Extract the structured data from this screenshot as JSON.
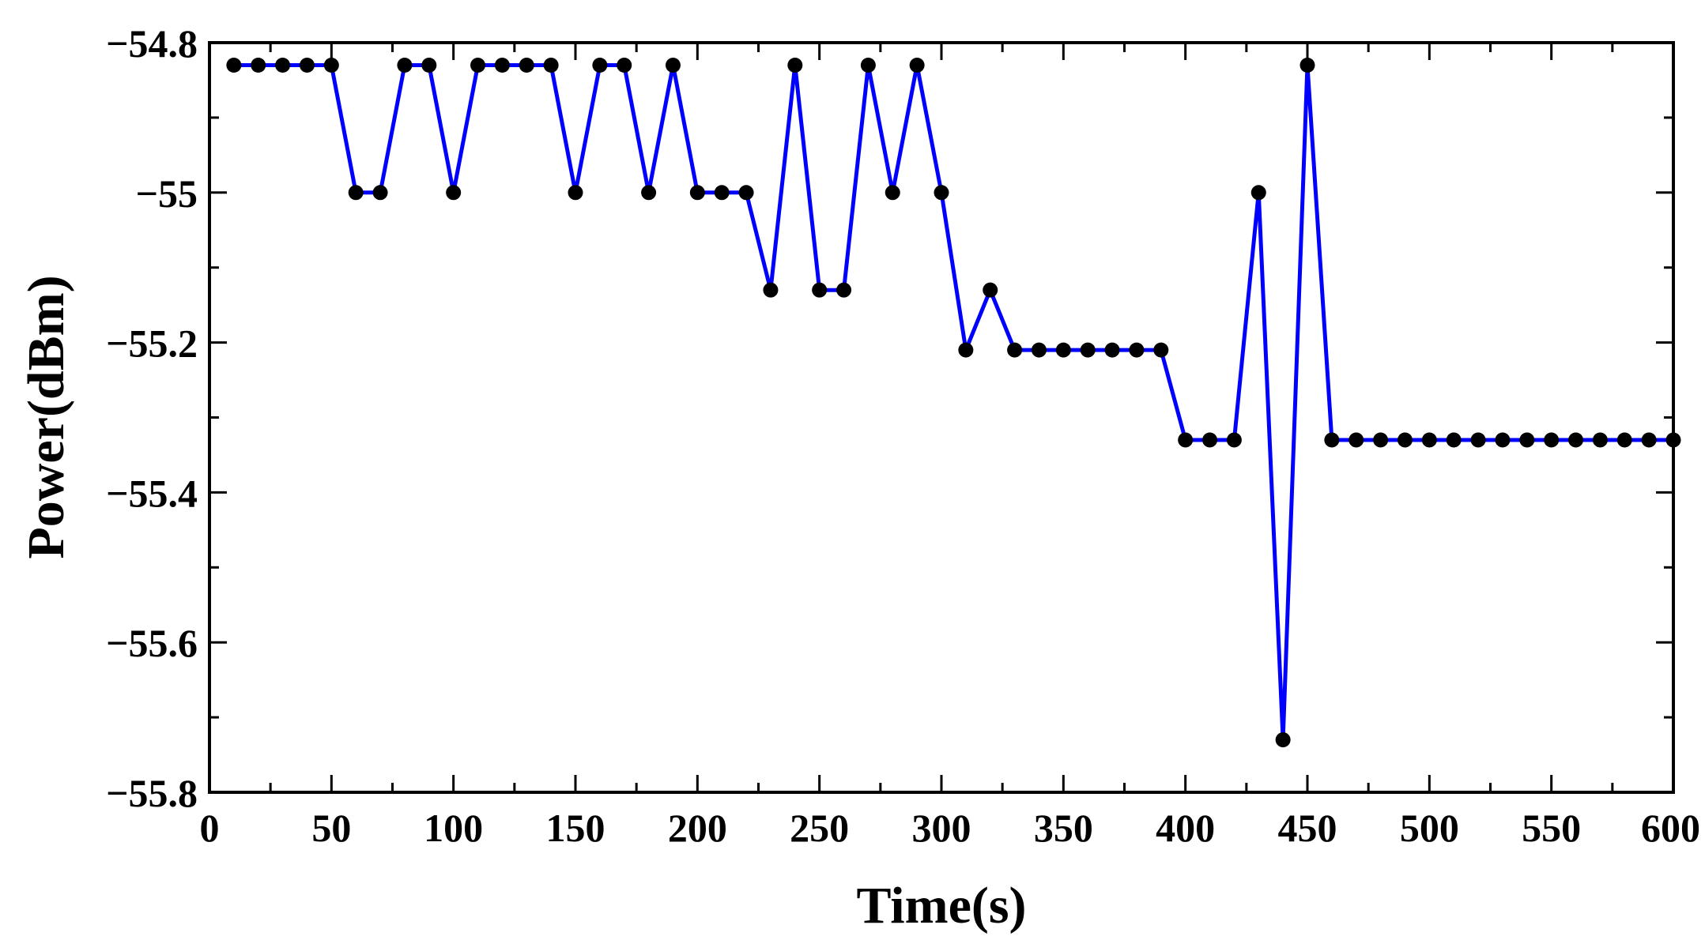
{
  "chart_data": {
    "type": "line",
    "title": "",
    "xlabel": "Time(s)",
    "ylabel": "Power(dBm)",
    "xlim": [
      0,
      600
    ],
    "ylim": [
      -55.8,
      -54.8
    ],
    "xticks": [
      0,
      50,
      100,
      150,
      200,
      250,
      300,
      350,
      400,
      450,
      500,
      550,
      600
    ],
    "xtick_labels": [
      "0",
      "50",
      "100",
      "150",
      "200",
      "250",
      "300",
      "350",
      "400",
      "450",
      "500",
      "550",
      "600"
    ],
    "yticks": [
      -54.8,
      -55,
      -55.2,
      -55.4,
      -55.6,
      -55.8
    ],
    "ytick_labels": [
      "−54.8",
      "−55",
      "−55.2",
      "−55.4",
      "−55.6",
      "−55.8"
    ],
    "grid": false,
    "legend": "none",
    "line_color": "#0000ff",
    "marker_color": "#000000",
    "x": [
      10,
      20,
      30,
      40,
      50,
      60,
      70,
      80,
      90,
      100,
      110,
      120,
      130,
      140,
      150,
      160,
      170,
      180,
      190,
      200,
      210,
      220,
      230,
      240,
      250,
      260,
      270,
      280,
      290,
      300,
      310,
      320,
      330,
      340,
      350,
      360,
      370,
      380,
      390,
      400,
      410,
      420,
      430,
      440,
      450,
      460,
      470,
      480,
      490,
      500,
      510,
      520,
      530,
      540,
      550,
      560,
      570,
      580,
      590,
      600
    ],
    "y": [
      -54.83,
      -54.83,
      -54.83,
      -54.83,
      -54.83,
      -55.0,
      -55.0,
      -54.83,
      -54.83,
      -55.0,
      -54.83,
      -54.83,
      -54.83,
      -54.83,
      -55.0,
      -54.83,
      -54.83,
      -55.0,
      -54.83,
      -55.0,
      -55.0,
      -55.0,
      -55.13,
      -54.83,
      -55.13,
      -55.13,
      -54.83,
      -55.0,
      -54.83,
      -55.0,
      -55.21,
      -55.13,
      -55.21,
      -55.21,
      -55.21,
      -55.21,
      -55.21,
      -55.21,
      -55.21,
      -55.33,
      -55.33,
      -55.33,
      -55.0,
      -55.73,
      -54.83,
      -55.33,
      -55.33,
      -55.33,
      -55.33,
      -55.33,
      -55.33,
      -55.33,
      -55.33,
      -55.33,
      -55.33,
      -55.33,
      -55.33,
      -55.33,
      -55.33,
      -55.33
    ]
  }
}
